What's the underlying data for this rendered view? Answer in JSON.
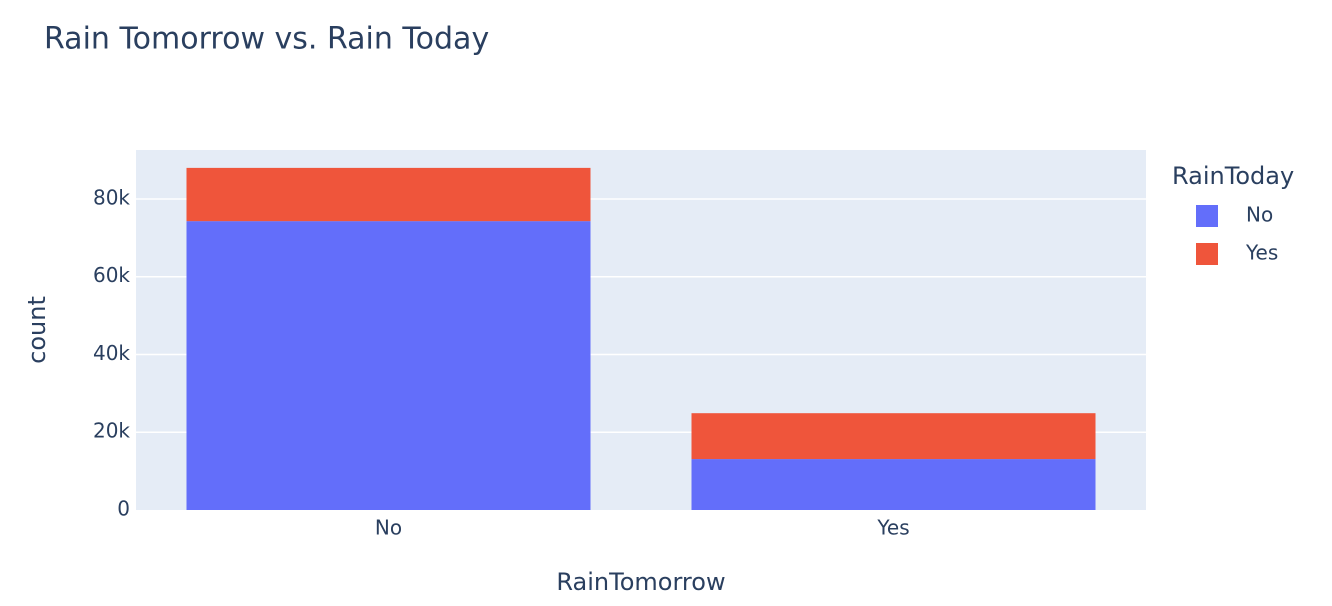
{
  "chart_data": {
    "type": "bar",
    "barmode": "stack",
    "title": "Rain Tomorrow vs. Rain Today",
    "x_label": "RainTomorrow",
    "y_label": "count",
    "categories": [
      "No",
      "Yes"
    ],
    "series": [
      {
        "name": "No",
        "color": "#636efa",
        "values": [
          74300,
          13100
        ]
      },
      {
        "name": "Yes",
        "color": "#ef553b",
        "values": [
          13700,
          11800
        ]
      }
    ],
    "legend_title": "RainToday",
    "ylim": [
      0,
      92600
    ],
    "yticks": [
      0,
      {
        "value": 20000,
        "label": "20k"
      },
      {
        "value": 40000,
        "label": "40k"
      },
      {
        "value": 60000,
        "label": "60k"
      },
      {
        "value": 80000,
        "label": "80k"
      }
    ],
    "grid": true,
    "legend": "right"
  }
}
